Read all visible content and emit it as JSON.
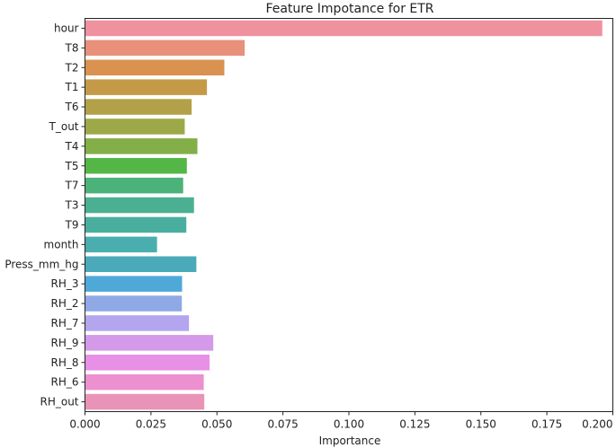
{
  "chart_data": {
    "type": "bar",
    "orientation": "horizontal",
    "title": "Feature Impotance for ETR",
    "xlabel": "Importance",
    "ylabel": "",
    "xlim": [
      0,
      0.2
    ],
    "xticks": [
      "0.000",
      "0.025",
      "0.050",
      "0.075",
      "0.100",
      "0.125",
      "0.150",
      "0.175",
      "0.200"
    ],
    "grid": false,
    "categories": [
      "hour",
      "T8",
      "T2",
      "T1",
      "T6",
      "T_out",
      "T4",
      "T5",
      "T7",
      "T3",
      "T9",
      "month",
      "Press_mm_hg",
      "RH_3",
      "RH_2",
      "RH_7",
      "RH_9",
      "RH_8",
      "RH_6",
      "RH_out"
    ],
    "values": [
      0.196,
      0.0605,
      0.0528,
      0.0462,
      0.0404,
      0.0378,
      0.0426,
      0.0386,
      0.0372,
      0.0413,
      0.0384,
      0.0273,
      0.0422,
      0.0368,
      0.0367,
      0.0394,
      0.0486,
      0.0472,
      0.045,
      0.0452
    ],
    "colors": [
      "#f0919f",
      "#e8907a",
      "#d99250",
      "#c49a48",
      "#b2a148",
      "#9da948",
      "#84ae48",
      "#55b648",
      "#4bb27a",
      "#4ab091",
      "#4aae9f",
      "#4aaeae",
      "#4aaab9",
      "#4fa9d8",
      "#8fa9e6",
      "#b3a6ef",
      "#d49ae9",
      "#e88fe6",
      "#ec90cf",
      "#e993b8"
    ]
  }
}
